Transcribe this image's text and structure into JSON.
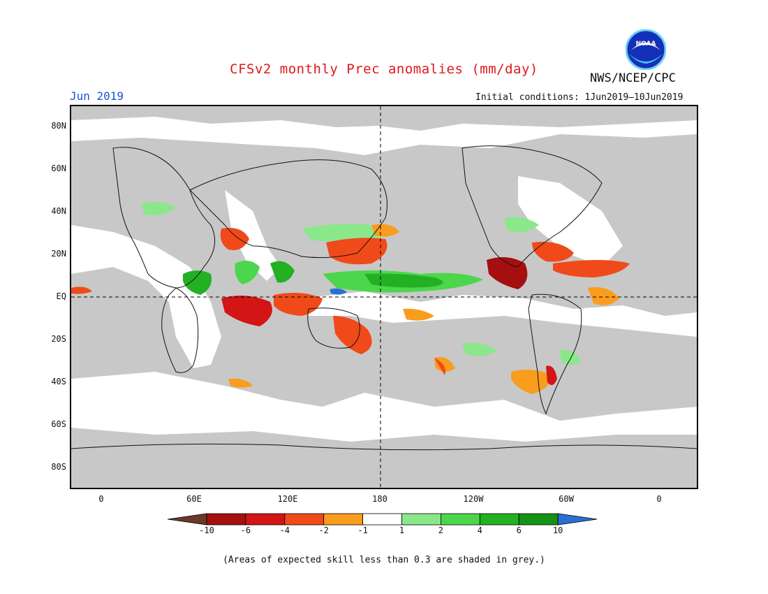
{
  "title": "CFSv2 monthly Prec anomalies (mm/day)",
  "month": "Jun 2019",
  "initial_conditions": "Initial conditions: 1Jun2019–10Jun2019",
  "agency": "NWS/NCEP/CPC",
  "logo": {
    "text": "NOAA",
    "icon": "noaa-logo"
  },
  "latitude_labels": [
    "80N",
    "60N",
    "40N",
    "20N",
    "EQ",
    "20S",
    "40S",
    "60S",
    "80S"
  ],
  "longitude_labels": [
    "0",
    "60E",
    "120E",
    "180",
    "120W",
    "60W",
    "0"
  ],
  "colorbar": {
    "labels": [
      "-10",
      "-6",
      "-4",
      "-2",
      "-1",
      "1",
      "2",
      "4",
      "6",
      "10"
    ],
    "colors": [
      "#6b3a2a",
      "#a50f0f",
      "#d41515",
      "#f04a1a",
      "#fa9c1c",
      "#ffffff",
      "#8ae88a",
      "#4cd64c",
      "#23b023",
      "#159115",
      "#2b6fd6"
    ]
  },
  "footnote": "(Areas of expected skill less than 0.3 are shaded in grey.)",
  "colors": {
    "skill_grey": "#c8c8c8",
    "no_anomaly": "#ffffff",
    "title_red": "#e0171b",
    "month_blue": "#1d4fd8"
  }
}
